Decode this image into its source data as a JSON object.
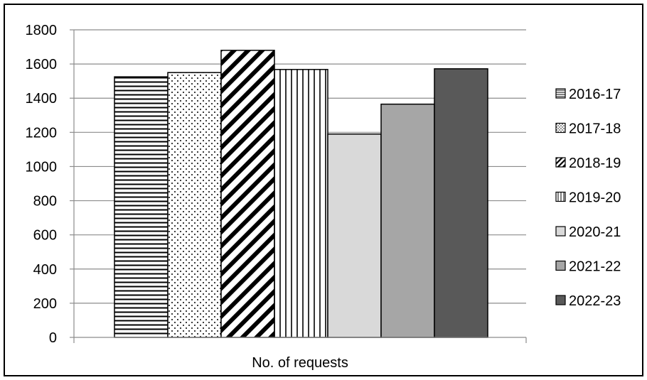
{
  "chart_data": {
    "type": "bar",
    "categories": [
      "No. of  requests"
    ],
    "series": [
      {
        "name": "2016-17",
        "values": [
          1525
        ],
        "pattern": "horizontal-lines",
        "color": "#000000"
      },
      {
        "name": "2017-18",
        "values": [
          1550
        ],
        "pattern": "dots",
        "color": "#000000"
      },
      {
        "name": "2018-19",
        "values": [
          1680
        ],
        "pattern": "diagonal-stripes",
        "color": "#000000"
      },
      {
        "name": "2019-20",
        "values": [
          1568
        ],
        "pattern": "vertical-lines",
        "color": "#000000"
      },
      {
        "name": "2020-21",
        "values": [
          1190
        ],
        "pattern": "solid",
        "color": "#d9d9d9"
      },
      {
        "name": "2021-22",
        "values": [
          1365
        ],
        "pattern": "solid",
        "color": "#a6a6a6"
      },
      {
        "name": "2022-23",
        "values": [
          1572
        ],
        "pattern": "solid",
        "color": "#595959"
      }
    ],
    "y_ticks": [
      "0",
      "200",
      "400",
      "600",
      "800",
      "1000",
      "1200",
      "1400",
      "1600",
      "1800"
    ],
    "ylim": [
      0,
      1800
    ],
    "grid": true,
    "legend_position": "right"
  }
}
